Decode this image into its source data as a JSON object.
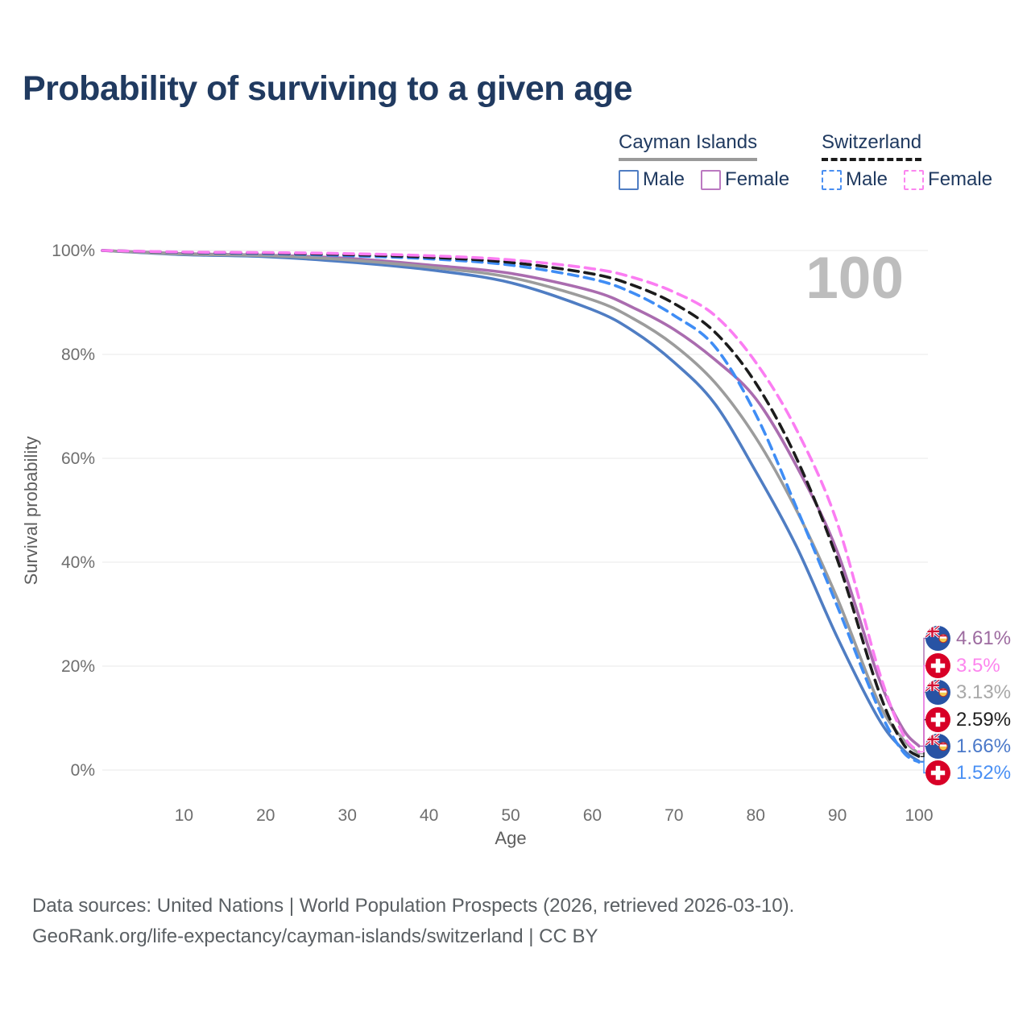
{
  "title": "Probability of surviving to a given age",
  "legend": {
    "position": "top-right",
    "groups": [
      {
        "label": "Cayman Islands",
        "line_style": "solid",
        "line_color": "#9a9a9a",
        "items": [
          {
            "label": "Male",
            "color": "#4f7dc3",
            "style": "solid"
          },
          {
            "label": "Female",
            "color": "#bb79c1",
            "style": "solid"
          }
        ]
      },
      {
        "label": "Switzerland",
        "line_style": "dashed",
        "line_color": "#1b1b1b",
        "items": [
          {
            "label": "Male",
            "color": "#4a8ff2",
            "style": "dashed"
          },
          {
            "label": "Female",
            "color": "#fb86f0",
            "style": "dashed"
          }
        ]
      }
    ]
  },
  "chart_data": {
    "type": "line",
    "title": "Probability of surviving to a given age",
    "xlabel": "Age",
    "ylabel": "Survival probability",
    "watermark": "100",
    "grid": true,
    "xlim": [
      0,
      100
    ],
    "ylim": [
      0,
      100
    ],
    "x_ticks": [
      10,
      20,
      30,
      40,
      50,
      60,
      70,
      80,
      90,
      100
    ],
    "y_ticks": [
      {
        "value": 0,
        "label": "0%"
      },
      {
        "value": 20,
        "label": "20%"
      },
      {
        "value": 40,
        "label": "40%"
      },
      {
        "value": 60,
        "label": "60%"
      },
      {
        "value": 80,
        "label": "80%"
      },
      {
        "value": 100,
        "label": "100%"
      }
    ],
    "x": [
      0,
      10,
      20,
      30,
      40,
      50,
      60,
      65,
      70,
      75,
      80,
      85,
      90,
      95,
      98,
      100
    ],
    "series": [
      {
        "name": "Cayman Islands Male",
        "country": "Cayman Islands",
        "sex": "Male",
        "color": "#4f7dc3",
        "dash": false,
        "values": [
          100,
          99.2,
          98.8,
          97.8,
          96.3,
          93.8,
          88.6,
          84.5,
          78.5,
          70.5,
          57.5,
          43,
          25.5,
          10,
          4,
          1.66
        ],
        "end_label": "1.66%",
        "end_row": 4
      },
      {
        "name": "Cayman Islands Female",
        "country": "Cayman Islands",
        "sex": "Female",
        "color": "#aa6caf",
        "dash": false,
        "values": [
          100,
          99.4,
          99.1,
          98.5,
          97.2,
          95.6,
          92.2,
          89,
          84.8,
          79,
          71.5,
          58.5,
          42,
          18,
          8,
          4.61
        ],
        "end_label": "4.61%",
        "end_row": 0
      },
      {
        "name": "Cayman Islands Both sexes",
        "country": "Cayman Islands",
        "sex": "Both",
        "color": "#9c9c9c",
        "dash": false,
        "values": [
          100,
          99.3,
          99,
          98.2,
          96.8,
          94.8,
          90.5,
          86.9,
          81.8,
          74.6,
          64,
          50,
          33,
          13.2,
          6,
          3.13
        ],
        "end_label": "3.13%",
        "end_row": 2
      },
      {
        "name": "Switzerland Male",
        "country": "Switzerland",
        "sex": "Male",
        "color": "#3f8df5",
        "dash": true,
        "values": [
          100,
          99.6,
          99.4,
          99,
          98.4,
          97.2,
          94.5,
          91.8,
          87.5,
          81.5,
          68.5,
          50.5,
          31.5,
          12,
          3.6,
          1.52
        ],
        "end_label": "1.52%",
        "end_row": 5
      },
      {
        "name": "Switzerland Both sexes",
        "country": "Switzerland",
        "sex": "Both",
        "color": "#1c1c1c",
        "dash": true,
        "values": [
          100,
          99.65,
          99.5,
          99.2,
          98.7,
          97.7,
          95.5,
          93.3,
          89.8,
          84.3,
          74.5,
          60,
          40.5,
          15.5,
          5.2,
          2.59
        ],
        "end_label": "2.59%",
        "end_row": 3
      },
      {
        "name": "Switzerland Female",
        "country": "Switzerland",
        "sex": "Female",
        "color": "#fb7df2",
        "dash": true,
        "values": [
          100,
          99.7,
          99.6,
          99.4,
          99,
          98.2,
          96.5,
          94.8,
          92,
          87.5,
          78.5,
          65.5,
          47.5,
          19.5,
          7,
          3.5
        ],
        "end_label": "3.5%",
        "end_row": 1
      }
    ]
  },
  "end_labels": [
    {
      "flag": "cayman-islands",
      "value": "4.61%",
      "color": "#9d6ba0"
    },
    {
      "flag": "switzerland",
      "value": "3.5%",
      "color": "#fd86ee"
    },
    {
      "flag": "cayman-islands",
      "value": "3.13%",
      "color": "#a8a8a8"
    },
    {
      "flag": "switzerland",
      "value": "2.59%",
      "color": "#1f1f1f"
    },
    {
      "flag": "cayman-islands",
      "value": "1.66%",
      "color": "#4b79c9"
    },
    {
      "flag": "switzerland",
      "value": "1.52%",
      "color": "#4a90f4"
    }
  ],
  "footer": {
    "line1": "Data sources: United Nations | World Population Prospects (2026, retrieved 2026-03-10).",
    "line2": "GeoRank.org/life-expectancy/cayman-islands/switzerland | CC BY"
  }
}
